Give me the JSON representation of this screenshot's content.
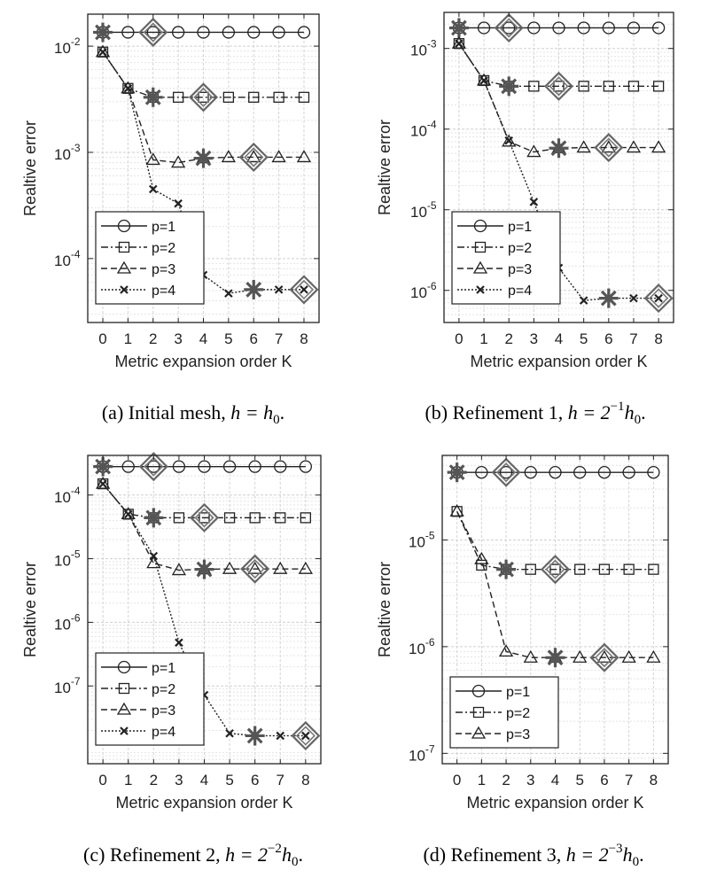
{
  "figure": {
    "legend_labels": [
      "p=1",
      "p=2",
      "p=3",
      "p=4"
    ]
  },
  "chart_data": [
    {
      "id": "a",
      "type": "line",
      "y_scale": "log",
      "xlabel": "Metric expansion order K",
      "ylabel": "Realtive error",
      "x": [
        0,
        1,
        2,
        3,
        4,
        5,
        6,
        7,
        8
      ],
      "xlim": [
        -0.6,
        8.6
      ],
      "ylim": [
        2.5e-05,
        0.02
      ],
      "yticks": [
        0.0001,
        0.001,
        0.01
      ],
      "ytick_labels": [
        {
          "base": "10",
          "exp": "-4"
        },
        {
          "base": "10",
          "exp": "-3"
        },
        {
          "base": "10",
          "exp": "-2"
        }
      ],
      "caption": {
        "prefix": "(a) Initial mesh, ",
        "math": "h = h",
        "sub": "0",
        "suffix": "."
      },
      "series": [
        {
          "name": "p=1",
          "values": [
            0.0135,
            0.0135,
            0.0135,
            0.0135,
            0.0135,
            0.0135,
            0.0135,
            0.0135,
            0.0135
          ],
          "marker": "circle",
          "dash": "solid",
          "star": [
            0
          ],
          "diamond": [
            2
          ]
        },
        {
          "name": "p=2",
          "values": [
            0.0088,
            0.004,
            0.0033,
            0.0033,
            0.0033,
            0.0033,
            0.0033,
            0.0033,
            0.0033
          ],
          "marker": "square",
          "dash": "dashdot",
          "star": [
            2
          ],
          "diamond": [
            4
          ]
        },
        {
          "name": "p=3",
          "values": [
            0.0088,
            0.004,
            0.00085,
            0.0008,
            0.00088,
            0.0009,
            0.0009,
            0.0009,
            0.0009
          ],
          "marker": "triangle",
          "dash": "dashed",
          "star": [
            4
          ],
          "diamond": [
            6
          ]
        },
        {
          "name": "p=4",
          "values": [
            0.0088,
            0.004,
            0.00045,
            0.00033,
            7e-05,
            4.7e-05,
            5.1e-05,
            5.1e-05,
            5.1e-05
          ],
          "marker": "x",
          "dash": "dotted",
          "star": [
            6
          ],
          "diamond": [
            8
          ]
        }
      ]
    },
    {
      "id": "b",
      "type": "line",
      "y_scale": "log",
      "xlabel": "Metric expansion order K",
      "ylabel": "Realtive error",
      "x": [
        0,
        1,
        2,
        3,
        4,
        5,
        6,
        7,
        8
      ],
      "xlim": [
        -0.6,
        8.6
      ],
      "ylim": [
        4e-07,
        0.0028
      ],
      "yticks": [
        1e-06,
        1e-05,
        0.0001,
        0.001
      ],
      "ytick_labels": [
        {
          "base": "10",
          "exp": "-6"
        },
        {
          "base": "10",
          "exp": "-5"
        },
        {
          "base": "10",
          "exp": "-4"
        },
        {
          "base": "10",
          "exp": "-3"
        }
      ],
      "caption": {
        "prefix": "(b) Refinement 1, ",
        "math": "h = 2",
        "sup": "−1",
        "math2": "h",
        "sub": "0",
        "suffix": "."
      },
      "series": [
        {
          "name": "p=1",
          "values": [
            0.0018,
            0.0018,
            0.0018,
            0.0018,
            0.0018,
            0.0018,
            0.0018,
            0.0018,
            0.0018
          ],
          "marker": "circle",
          "dash": "solid",
          "star": [
            0
          ],
          "diamond": [
            2
          ]
        },
        {
          "name": "p=2",
          "values": [
            0.00115,
            0.0004,
            0.00034,
            0.00034,
            0.00034,
            0.00034,
            0.00034,
            0.00034,
            0.00034
          ],
          "marker": "square",
          "dash": "dashdot",
          "star": [
            2
          ],
          "diamond": [
            4
          ]
        },
        {
          "name": "p=3",
          "values": [
            0.00115,
            0.0004,
            7e-05,
            5.2e-05,
            5.8e-05,
            5.9e-05,
            5.9e-05,
            5.9e-05,
            5.9e-05
          ],
          "marker": "triangle",
          "dash": "dashed",
          "star": [
            4
          ],
          "diamond": [
            6
          ]
        },
        {
          "name": "p=4",
          "values": [
            0.00115,
            0.0004,
            7.2e-05,
            1.25e-05,
            1.9e-06,
            7.5e-07,
            8e-07,
            8e-07,
            8e-07
          ],
          "marker": "x",
          "dash": "dotted",
          "star": [
            6
          ],
          "diamond": [
            8
          ]
        }
      ]
    },
    {
      "id": "c",
      "type": "line",
      "y_scale": "log",
      "xlabel": "Metric expansion order K",
      "ylabel": "Realtive error",
      "x": [
        0,
        1,
        2,
        3,
        4,
        5,
        6,
        7,
        8
      ],
      "xlim": [
        -0.6,
        8.6
      ],
      "ylim": [
        6e-09,
        0.00042
      ],
      "yticks": [
        1e-07,
        1e-06,
        1e-05,
        0.0001
      ],
      "ytick_labels": [
        {
          "base": "10",
          "exp": "-7"
        },
        {
          "base": "10",
          "exp": "-6"
        },
        {
          "base": "10",
          "exp": "-5"
        },
        {
          "base": "10",
          "exp": "-4"
        }
      ],
      "caption": {
        "prefix": "(c) Refinement 2, ",
        "math": "h = 2",
        "sup": "−2",
        "math2": "h",
        "sub": "0",
        "suffix": "."
      },
      "series": [
        {
          "name": "p=1",
          "values": [
            0.00028,
            0.00028,
            0.00028,
            0.00028,
            0.00028,
            0.00028,
            0.00028,
            0.00028,
            0.00028
          ],
          "marker": "circle",
          "dash": "solid",
          "star": [
            0
          ],
          "diamond": [
            2
          ]
        },
        {
          "name": "p=2",
          "values": [
            0.00015,
            5e-05,
            4.4e-05,
            4.4e-05,
            4.4e-05,
            4.4e-05,
            4.4e-05,
            4.4e-05,
            4.4e-05
          ],
          "marker": "square",
          "dash": "dashdot",
          "star": [
            2
          ],
          "diamond": [
            4
          ]
        },
        {
          "name": "p=3",
          "values": [
            0.00015,
            5e-05,
            8.5e-06,
            6.6e-06,
            6.8e-06,
            6.9e-06,
            6.9e-06,
            6.9e-06,
            6.9e-06
          ],
          "marker": "triangle",
          "dash": "dashed",
          "star": [
            4
          ],
          "diamond": [
            6
          ]
        },
        {
          "name": "p=4",
          "values": [
            0.00015,
            5e-05,
            1.1e-05,
            4.8e-07,
            7.2e-08,
            1.8e-08,
            1.65e-08,
            1.65e-08,
            1.65e-08
          ],
          "marker": "x",
          "dash": "dotted",
          "star": [
            6
          ],
          "diamond": [
            8
          ]
        }
      ]
    },
    {
      "id": "d",
      "type": "line",
      "y_scale": "log",
      "xlabel": "Metric expansion order K",
      "ylabel": "Realtive error",
      "x": [
        0,
        1,
        2,
        3,
        4,
        5,
        6,
        7,
        8
      ],
      "xlim": [
        -0.6,
        8.6
      ],
      "ylim": [
        8e-08,
        6.2e-05
      ],
      "yticks": [
        1e-07,
        1e-06,
        1e-05
      ],
      "ytick_labels": [
        {
          "base": "10",
          "exp": "-7"
        },
        {
          "base": "10",
          "exp": "-6"
        },
        {
          "base": "10",
          "exp": "-5"
        }
      ],
      "caption": {
        "prefix": "(d) Refinement 3, ",
        "math": "h = 2",
        "sup": "−3",
        "math2": "h",
        "sub": "0",
        "suffix": "."
      },
      "series": [
        {
          "name": "p=1",
          "values": [
            4.3e-05,
            4.3e-05,
            4.3e-05,
            4.3e-05,
            4.3e-05,
            4.3e-05,
            4.3e-05,
            4.3e-05,
            4.3e-05
          ],
          "marker": "circle",
          "dash": "solid",
          "star": [
            0
          ],
          "diamond": [
            2
          ]
        },
        {
          "name": "p=2",
          "values": [
            1.85e-05,
            5.8e-06,
            5.3e-06,
            5.3e-06,
            5.3e-06,
            5.3e-06,
            5.3e-06,
            5.3e-06,
            5.3e-06
          ],
          "marker": "square",
          "dash": "dashdot",
          "star": [
            2
          ],
          "diamond": [
            4
          ]
        },
        {
          "name": "p=3",
          "values": [
            1.85e-05,
            6.6e-06,
            9e-07,
            7.9e-07,
            7.9e-07,
            7.9e-07,
            7.9e-07,
            7.9e-07,
            7.9e-07
          ],
          "marker": "triangle",
          "dash": "dashed",
          "star": [
            4
          ],
          "diamond": [
            6
          ]
        }
      ]
    }
  ]
}
